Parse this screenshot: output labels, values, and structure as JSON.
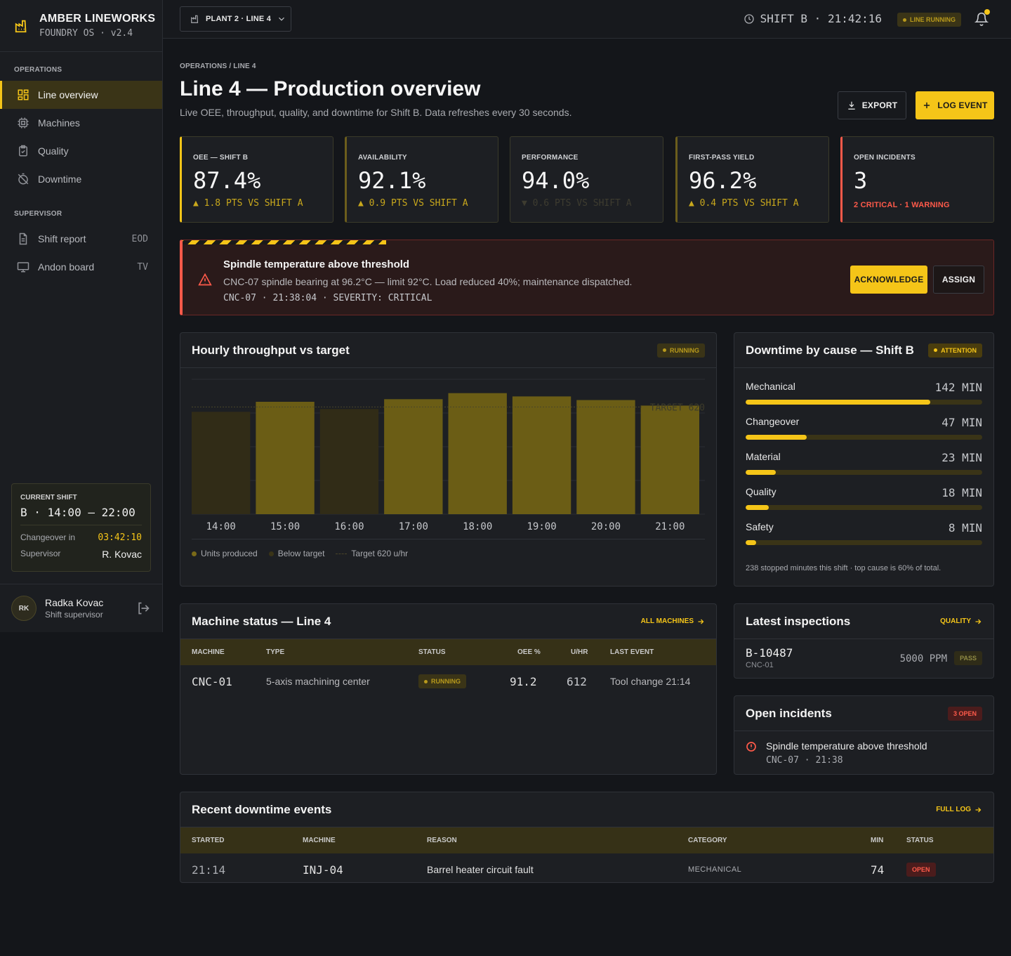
{
  "brand": {
    "name": "AMBER LINEWORKS",
    "sub": "FOUNDRY OS · v2.4"
  },
  "nav": {
    "operations_heading": "OPERATIONS",
    "operations": [
      {
        "label": "Line overview",
        "icon": "grid-icon"
      },
      {
        "label": "Machines",
        "icon": "chip-icon"
      },
      {
        "label": "Quality",
        "icon": "clipboard-icon"
      },
      {
        "label": "Downtime",
        "icon": "timer-off-icon"
      }
    ],
    "supervisor_heading": "SUPERVISOR",
    "supervisor": [
      {
        "label": "Shift report",
        "aside": "EOD"
      },
      {
        "label": "Andon board",
        "aside": "TV"
      }
    ]
  },
  "current_shift": {
    "label": "CURRENT SHIFT",
    "value": "B · 14:00 – 22:00",
    "changeover_label": "Changeover in",
    "changeover_value": "03:42:10",
    "supervisor_label": "Supervisor",
    "supervisor_value": "R. Kovac"
  },
  "user": {
    "initials": "RK",
    "name": "Radka Kovac",
    "role": "Shift supervisor"
  },
  "topbar": {
    "plant": "PLANT 2 · LINE 4",
    "clock": "SHIFT B · 21:42:16",
    "status": "LINE RUNNING"
  },
  "page": {
    "breadcrumb": "OPERATIONS / LINE 4",
    "title": "Line 4 — Production overview",
    "subtitle": "Live OEE, throughput, quality, and downtime for Shift B. Data refreshes every 30 seconds.",
    "export_label": "EXPORT",
    "log_label": "LOG EVENT"
  },
  "kpis": [
    {
      "label": "OEE — SHIFT B",
      "value": "87.4%",
      "delta": "▲ 1.8 PTS VS SHIFT A"
    },
    {
      "label": "AVAILABILITY",
      "value": "92.1%",
      "delta": "▲ 0.9 PTS VS SHIFT A"
    },
    {
      "label": "PERFORMANCE",
      "value": "94.0%",
      "delta": "▼ 0.6 PTS VS SHIFT A"
    },
    {
      "label": "FIRST-PASS YIELD",
      "value": "96.2%",
      "delta": "▲ 0.4 PTS VS SHIFT A"
    },
    {
      "label": "OPEN INCIDENTS",
      "value": "3",
      "delta": "2 CRITICAL · 1 WARNING"
    }
  ],
  "alert": {
    "title": "Spindle temperature above threshold",
    "body": "CNC-07 spindle bearing at 96.2°C — limit 92°C. Load reduced 40%; maintenance dispatched.",
    "meta": "CNC-07 · 21:38:04 · SEVERITY: CRITICAL",
    "ack_label": "ACKNOWLEDGE",
    "assign_label": "ASSIGN"
  },
  "throughput": {
    "title": "Hourly throughput vs target",
    "status": "RUNNING",
    "target_label": "TARGET 620",
    "legend": [
      "Units produced",
      "Below target",
      "Target 620 u/hr"
    ]
  },
  "chart_data": {
    "type": "bar",
    "categories": [
      "14:00",
      "15:00",
      "16:00",
      "17:00",
      "18:00",
      "19:00",
      "20:00",
      "21:00"
    ],
    "values": [
      592,
      650,
      608,
      665,
      700,
      681,
      660,
      628
    ],
    "below_target": [
      true,
      false,
      true,
      false,
      false,
      false,
      false,
      false
    ],
    "target": 620,
    "ylim": [
      0,
      780
    ]
  },
  "downtime": {
    "title": "Downtime by cause — Shift B",
    "status": "ATTENTION",
    "items": [
      {
        "cause": "Mechanical",
        "minutes": "142 MIN",
        "value": 142
      },
      {
        "cause": "Changeover",
        "minutes": "47 MIN",
        "value": 47
      },
      {
        "cause": "Material",
        "minutes": "23 MIN",
        "value": 23
      },
      {
        "cause": "Quality",
        "minutes": "18 MIN",
        "value": 18
      },
      {
        "cause": "Safety",
        "minutes": "8 MIN",
        "value": 8
      }
    ],
    "max": 182,
    "footer": "238 stopped minutes this shift · top cause is 60% of total."
  },
  "machines": {
    "title": "Machine status — Line 4",
    "link": "ALL MACHINES",
    "headers": [
      "MACHINE",
      "TYPE",
      "STATUS",
      "OEE %",
      "U/HR",
      "LAST EVENT"
    ],
    "rows": [
      {
        "machine": "CNC-01",
        "type": "5-axis machining center",
        "status": "RUNNING",
        "oee": "91.2",
        "uhr": "612",
        "last": "Tool change 21:14"
      }
    ]
  },
  "inspections": {
    "title": "Latest inspections",
    "link": "QUALITY",
    "items": [
      {
        "batch": "B-10487",
        "machine": "CNC-01",
        "ppm": "5000 PPM",
        "result": "PASS"
      }
    ]
  },
  "incidents": {
    "title": "Open incidents",
    "badge": "3 OPEN",
    "items": [
      {
        "title": "Spindle temperature above threshold",
        "meta": "CNC-07 · 21:38"
      }
    ]
  },
  "recent": {
    "title": "Recent downtime events",
    "link": "FULL LOG",
    "headers": [
      "STARTED",
      "MACHINE",
      "REASON",
      "CATEGORY",
      "MIN",
      "STATUS"
    ],
    "rows": [
      {
        "started": "21:14",
        "machine": "INJ-04",
        "reason": "Barrel heater circuit fault",
        "category": "MECHANICAL",
        "min": "74",
        "status": "OPEN"
      }
    ]
  },
  "colors": {
    "accent": "#f5c518",
    "critical": "#ff5a4a",
    "bg": "#14161a",
    "panel": "#1d1f23"
  }
}
